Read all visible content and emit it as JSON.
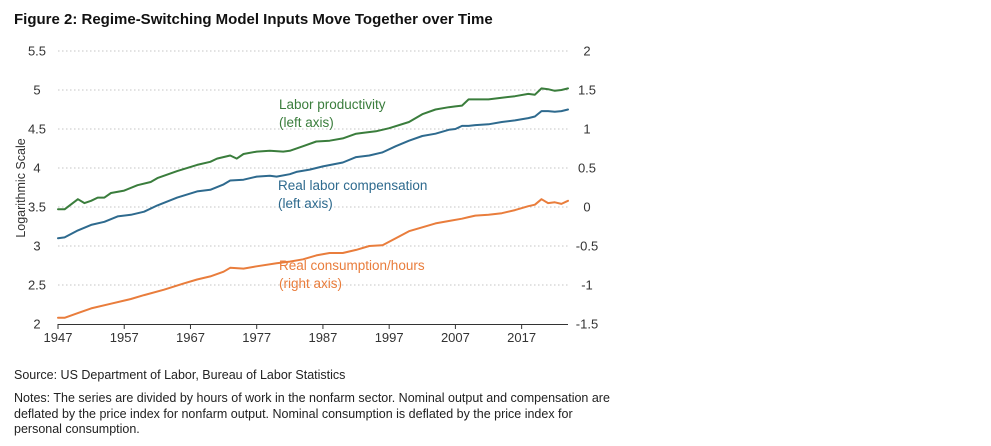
{
  "figure": {
    "title": "Figure 2: Regime-Switching Model Inputs Move Together over Time",
    "source": "Source: US Department of Labor, Bureau of Labor Statistics",
    "notes": "Notes: The series are divided by hours of work in the nonfarm sector. Nominal output and compensation are deflated by the price index for nonfarm output. Nominal consumption is deflated by the price index for personal consumption."
  },
  "chart_data": {
    "type": "line",
    "title": "Figure 2: Regime-Switching Model Inputs Move Together over Time",
    "ylabel": "Logarithmic Scale",
    "xlabel": "",
    "xlim": [
      1947,
      2024
    ],
    "ylim_left": [
      2,
      5.5
    ],
    "ylim_right": [
      -1.5,
      2
    ],
    "x_ticks": [
      "1947",
      "1957",
      "1967",
      "1977",
      "1987",
      "1997",
      "2007",
      "2017"
    ],
    "y_left_ticks": [
      "2",
      "2.5",
      "3",
      "3.5",
      "4",
      "4.5",
      "5",
      "5.5"
    ],
    "y_right_ticks": [
      "-1.5",
      "-1",
      "-0.5",
      "0",
      "0.5",
      "1",
      "1.5",
      "2"
    ],
    "grid": true,
    "grid_style": "dotted horizontal",
    "colors": {
      "green": "#3a7d3c",
      "blue": "#2e6a8e",
      "orange": "#e97d3c"
    },
    "series": [
      {
        "name": "Labor productivity",
        "axis_note": "(left axis)",
        "axis": "left",
        "color": "#3a7d3c",
        "x": [
          1947,
          1948,
          1950,
          1951,
          1952,
          1953,
          1954,
          1955,
          1957,
          1959,
          1961,
          1962,
          1965,
          1968,
          1970,
          1971,
          1973,
          1974,
          1975,
          1977,
          1979,
          1981,
          1982,
          1984,
          1986,
          1988,
          1990,
          1992,
          1993,
          1995,
          1997,
          2000,
          2002,
          2004,
          2006,
          2007,
          2008,
          2009,
          2010,
          2012,
          2014,
          2016,
          2018,
          2019,
          2020,
          2021,
          2022,
          2023,
          2024
        ],
        "y": [
          3.47,
          3.47,
          3.6,
          3.55,
          3.58,
          3.62,
          3.62,
          3.68,
          3.71,
          3.78,
          3.82,
          3.87,
          3.96,
          4.04,
          4.08,
          4.12,
          4.16,
          4.12,
          4.18,
          4.21,
          4.22,
          4.21,
          4.22,
          4.28,
          4.34,
          4.35,
          4.38,
          4.44,
          4.45,
          4.47,
          4.51,
          4.59,
          4.69,
          4.75,
          4.78,
          4.79,
          4.8,
          4.88,
          4.88,
          4.88,
          4.9,
          4.92,
          4.95,
          4.94,
          5.02,
          5.01,
          4.99,
          5.0,
          5.02
        ]
      },
      {
        "name": "Real labor compensation",
        "axis_note": "(left axis)",
        "axis": "left",
        "color": "#2e6a8e",
        "x": [
          1947,
          1948,
          1950,
          1952,
          1954,
          1956,
          1958,
          1960,
          1962,
          1965,
          1968,
          1970,
          1972,
          1973,
          1975,
          1977,
          1979,
          1980,
          1982,
          1983,
          1985,
          1987,
          1990,
          1992,
          1994,
          1996,
          1998,
          2000,
          2002,
          2004,
          2006,
          2007,
          2008,
          2009,
          2010,
          2012,
          2014,
          2016,
          2018,
          2019,
          2020,
          2021,
          2022,
          2023,
          2024
        ],
        "y": [
          3.1,
          3.11,
          3.2,
          3.27,
          3.31,
          3.38,
          3.4,
          3.44,
          3.52,
          3.62,
          3.7,
          3.72,
          3.79,
          3.84,
          3.85,
          3.89,
          3.9,
          3.89,
          3.92,
          3.95,
          3.98,
          4.02,
          4.07,
          4.14,
          4.16,
          4.2,
          4.28,
          4.35,
          4.41,
          4.44,
          4.49,
          4.5,
          4.54,
          4.54,
          4.55,
          4.56,
          4.59,
          4.61,
          4.64,
          4.66,
          4.73,
          4.73,
          4.72,
          4.73,
          4.75
        ]
      },
      {
        "name": "Real consumption/hours",
        "axis_note": "(right axis)",
        "axis": "right",
        "color": "#e97d3c",
        "x": [
          1947,
          1948,
          1950,
          1952,
          1955,
          1958,
          1960,
          1963,
          1966,
          1968,
          1970,
          1972,
          1973,
          1975,
          1977,
          1980,
          1982,
          1984,
          1986,
          1988,
          1990,
          1992,
          1994,
          1996,
          1998,
          2000,
          2002,
          2004,
          2006,
          2008,
          2009,
          2010,
          2012,
          2014,
          2016,
          2018,
          2019,
          2020,
          2021,
          2022,
          2023,
          2024
        ],
        "y": [
          -1.42,
          -1.42,
          -1.36,
          -1.3,
          -1.24,
          -1.18,
          -1.13,
          -1.06,
          -0.98,
          -0.93,
          -0.89,
          -0.83,
          -0.78,
          -0.79,
          -0.76,
          -0.72,
          -0.7,
          -0.67,
          -0.62,
          -0.59,
          -0.59,
          -0.55,
          -0.5,
          -0.49,
          -0.4,
          -0.31,
          -0.26,
          -0.21,
          -0.18,
          -0.15,
          -0.13,
          -0.11,
          -0.1,
          -0.08,
          -0.04,
          0.01,
          0.03,
          0.1,
          0.05,
          0.06,
          0.04,
          0.08
        ]
      }
    ],
    "annotations": [
      {
        "series": 0,
        "line1": "Labor productivity",
        "line2": "(left axis)"
      },
      {
        "series": 1,
        "line1": "Real labor compensation",
        "line2": "(left axis)"
      },
      {
        "series": 2,
        "line1": "Real consumption/hours",
        "line2": "(right axis)"
      }
    ]
  }
}
